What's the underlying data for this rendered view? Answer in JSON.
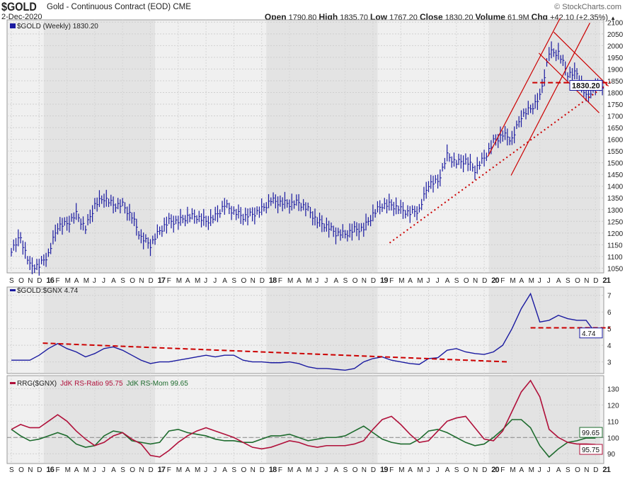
{
  "header": {
    "symbol": "$GOLD",
    "name": "Gold - Continuous Contract (EOD)",
    "exchange": "CME",
    "date": "2-Dec-2020",
    "credit": "© StockCharts.com",
    "open_label": "Open",
    "open": "1790.80",
    "high_label": "High",
    "high": "1835.70",
    "low_label": "Low",
    "low": "1767.20",
    "close_label": "Close",
    "close": "1830.20",
    "volume_label": "Volume",
    "volume": "61.9M",
    "chg_label": "Chg",
    "chg": "+42.10 (+2.35%)",
    "chg_arrow": "▲"
  },
  "colors": {
    "price": "#1a1aa0",
    "trend": "#cc0000",
    "ratio": "#b0103a",
    "momentum": "#1e6b2e",
    "bg": "#f0f0f0",
    "bg_alt": "#e3e3e3"
  },
  "chart_data": [
    {
      "type": "ohlc",
      "title": "$GOLD (Weekly) 1830.20",
      "last_value": "1830.20",
      "ylim": [
        1030,
        2110
      ],
      "yticks": [
        1050,
        1100,
        1150,
        1200,
        1250,
        1300,
        1350,
        1400,
        1450,
        1500,
        1550,
        1600,
        1650,
        1700,
        1750,
        1800,
        1850,
        1900,
        1950,
        2000,
        2050,
        2100
      ],
      "x_start": "Sep 2015",
      "close": [
        1130,
        1180,
        1060,
        1060,
        1110,
        1230,
        1240,
        1280,
        1220,
        1320,
        1350,
        1320,
        1320,
        1270,
        1180,
        1150,
        1210,
        1250,
        1250,
        1270,
        1270,
        1250,
        1270,
        1320,
        1290,
        1270,
        1280,
        1300,
        1340,
        1330,
        1325,
        1330,
        1300,
        1250,
        1230,
        1200,
        1195,
        1215,
        1220,
        1280,
        1320,
        1320,
        1300,
        1285,
        1300,
        1410,
        1420,
        1530,
        1500,
        1510,
        1470,
        1520,
        1590,
        1620,
        1600,
        1700,
        1730,
        1780,
        1970,
        1970,
        1880,
        1880,
        1780,
        1830
      ],
      "annotations": [
        {
          "style": "solid",
          "from": [
            51.4,
            1527
          ],
          "to": [
            59.2,
            2118
          ]
        },
        {
          "style": "solid",
          "from": [
            53.9,
            1446
          ],
          "to": [
            62.4,
            2097
          ]
        },
        {
          "style": "solid",
          "from": [
            58.5,
            2058
          ],
          "to": [
            64.4,
            1827
          ]
        },
        {
          "style": "solid",
          "from": [
            56.9,
            1968
          ],
          "to": [
            63.4,
            1713
          ]
        },
        {
          "style": "dashed",
          "from": [
            56.2,
            1842
          ],
          "to": [
            64.6,
            1842
          ]
        },
        {
          "style": "dotted",
          "from": [
            40.8,
            1158
          ],
          "to": [
            64.6,
            1845
          ]
        }
      ]
    },
    {
      "type": "line",
      "title": "$GOLD:$GNX 4.74",
      "last_value": "4.74",
      "ylim": [
        2.3,
        7.5
      ],
      "yticks": [
        3,
        4,
        5,
        6,
        7
      ],
      "values": [
        3.1,
        3.1,
        3.1,
        3.4,
        3.8,
        4.1,
        3.8,
        3.6,
        3.3,
        3.5,
        3.8,
        3.9,
        3.7,
        3.4,
        3.1,
        2.9,
        3.0,
        3.0,
        3.1,
        3.2,
        3.3,
        3.4,
        3.3,
        3.4,
        3.4,
        3.1,
        3.0,
        3.0,
        2.95,
        2.95,
        3.0,
        2.9,
        2.7,
        2.6,
        2.6,
        2.55,
        2.5,
        2.6,
        3.0,
        3.2,
        3.3,
        3.1,
        3.0,
        2.9,
        2.85,
        3.2,
        3.25,
        3.7,
        3.8,
        3.6,
        3.5,
        3.45,
        3.6,
        4.0,
        5.0,
        6.2,
        7.1,
        5.4,
        5.5,
        5.8,
        5.6,
        5.5,
        5.5,
        4.74
      ],
      "annotations": [
        {
          "style": "dashed",
          "from": [
            3.4,
            4.13
          ],
          "to": [
            53.6,
            3.0
          ]
        },
        {
          "style": "dashed",
          "from": [
            56,
            5.05
          ],
          "to": [
            64.6,
            5.05
          ]
        }
      ]
    },
    {
      "type": "line",
      "title": "RRG($GNX)",
      "ylim": [
        84,
        138
      ],
      "yticks": [
        90,
        100,
        110,
        120,
        130
      ],
      "series": [
        {
          "name": "JdK RS-Ratio 95.75",
          "last_value": "95.75",
          "values": [
            105,
            108,
            106,
            106,
            110,
            114,
            110,
            104,
            99,
            95,
            97,
            101,
            103,
            99,
            96,
            89,
            88,
            92,
            97,
            101,
            104,
            106,
            104,
            102,
            100,
            97,
            94,
            93,
            94,
            96,
            98,
            97,
            95,
            94,
            95,
            95,
            95,
            96,
            98,
            105,
            111,
            113,
            108,
            102,
            97,
            98,
            104,
            110,
            112,
            113,
            106,
            99,
            98,
            104,
            116,
            128,
            135,
            125,
            105,
            100,
            97,
            96,
            96,
            95.75
          ]
        },
        {
          "name": "JdK RS-Mom 99.65",
          "last_value": "99.65",
          "values": [
            105,
            101,
            98,
            99,
            101,
            103,
            101,
            96,
            94,
            95,
            101,
            104,
            103,
            98,
            97,
            96,
            97,
            104,
            105,
            103,
            102,
            101,
            99,
            98,
            98,
            97,
            97,
            99,
            101,
            101,
            102,
            100,
            98,
            99,
            100,
            100,
            101,
            104,
            107,
            103,
            99,
            97,
            96,
            96,
            99,
            104,
            105,
            103,
            100,
            97,
            95,
            96,
            100,
            105,
            111,
            111,
            106,
            95,
            88,
            93,
            97,
            98,
            99.7,
            99.65
          ]
        }
      ]
    }
  ],
  "x_labels": [
    "S",
    "O",
    "N",
    "D",
    "16",
    "F",
    "M",
    "A",
    "M",
    "J",
    "J",
    "A",
    "S",
    "O",
    "N",
    "D",
    "17",
    "F",
    "M",
    "A",
    "M",
    "J",
    "J",
    "A",
    "S",
    "O",
    "N",
    "D",
    "18",
    "F",
    "M",
    "A",
    "M",
    "J",
    "J",
    "A",
    "S",
    "O",
    "N",
    "D",
    "19",
    "F",
    "M",
    "A",
    "M",
    "J",
    "J",
    "A",
    "S",
    "O",
    "N",
    "D",
    "20",
    "F",
    "M",
    "A",
    "M",
    "J",
    "J",
    "A",
    "S",
    "O",
    "N",
    "D",
    "21"
  ]
}
